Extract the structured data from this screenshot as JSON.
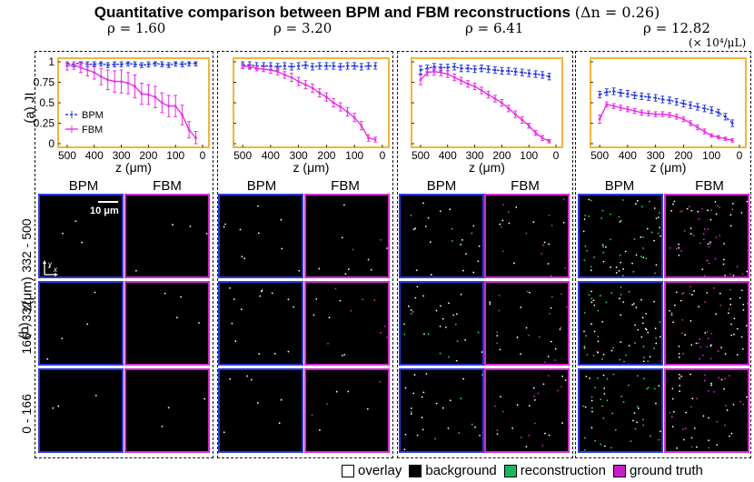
{
  "title": {
    "text": "Quantitative comparison between BPM and FBM reconstructions",
    "suffix": "(Δn = 0.26)"
  },
  "rho_values": [
    "1.60",
    "3.20",
    "6.41",
    "12.82"
  ],
  "rho_symbol": "ρ = ",
  "unit_label": "(× 10⁴/μL)",
  "row_a_label": "(a)  JI",
  "row_b_label": "(b)",
  "z_axis_label": "z(μm)",
  "z_bins": [
    "332 - 500",
    "166 - 332",
    "0 - 166"
  ],
  "column_headers": {
    "bpm": "BPM",
    "fbm": "FBM"
  },
  "scale_bar": {
    "label": "10 μm"
  },
  "orientation": {
    "y": "y",
    "x": "x"
  },
  "legend_plot": {
    "bpm": "BPM",
    "fbm": "FBM"
  },
  "legend_bottom": [
    {
      "label": "overlay",
      "color": "#ffffff"
    },
    {
      "label": "background",
      "color": "#000000"
    },
    {
      "label": "reconstruction",
      "color": "#1bb560"
    },
    {
      "label": "ground truth",
      "color": "#c81ec8"
    }
  ],
  "colors": {
    "bpm": "#2a3adf",
    "fbm": "#e62fe3",
    "frame": "#f2b53b",
    "overlay": "#ffffff",
    "recon": "#22e05a",
    "truth": "#d62ad0"
  },
  "chart_data": [
    {
      "type": "line",
      "title": "ρ = 1.60",
      "xlabel": "z (μm)",
      "ylabel": "JI",
      "xlim": [
        520,
        -10
      ],
      "ylim": [
        0,
        1
      ],
      "xticks": [
        500,
        400,
        300,
        200,
        100,
        0
      ],
      "yticks": [
        0,
        0.25,
        0.5,
        0.75,
        1
      ],
      "ytick_labels": [
        "0",
        "0.25",
        "0.5",
        "0.75",
        "1"
      ],
      "x": [
        500,
        475,
        450,
        425,
        400,
        375,
        350,
        325,
        300,
        275,
        250,
        225,
        200,
        175,
        150,
        125,
        100,
        75,
        50,
        25
      ],
      "series": [
        {
          "name": "BPM",
          "values": [
            0.98,
            0.97,
            0.99,
            0.97,
            0.97,
            0.98,
            0.96,
            0.97,
            0.97,
            0.98,
            0.97,
            0.96,
            0.97,
            0.98,
            0.97,
            0.96,
            0.98,
            0.97,
            0.98,
            0.98
          ],
          "err": [
            0.03,
            0.03,
            0.03,
            0.03,
            0.03,
            0.03,
            0.03,
            0.03,
            0.03,
            0.03,
            0.03,
            0.03,
            0.03,
            0.03,
            0.03,
            0.03,
            0.03,
            0.03,
            0.03,
            0.03
          ]
        },
        {
          "name": "FBM",
          "values": [
            0.95,
            0.96,
            0.93,
            0.9,
            0.87,
            0.82,
            0.78,
            0.76,
            0.76,
            0.74,
            0.7,
            0.61,
            0.6,
            0.57,
            0.5,
            0.46,
            0.46,
            0.35,
            0.17,
            0.07
          ],
          "err": [
            0.05,
            0.05,
            0.06,
            0.07,
            0.08,
            0.1,
            0.12,
            0.13,
            0.14,
            0.13,
            0.14,
            0.13,
            0.12,
            0.13,
            0.12,
            0.13,
            0.13,
            0.12,
            0.1,
            0.08
          ]
        }
      ]
    },
    {
      "type": "line",
      "title": "ρ = 3.20",
      "xlabel": "z (μm)",
      "ylabel": "JI",
      "xlim": [
        520,
        -10
      ],
      "ylim": [
        0,
        1
      ],
      "xticks": [
        500,
        400,
        300,
        200,
        100,
        0
      ],
      "yticks": [
        0,
        0.25,
        0.5,
        0.75,
        1
      ],
      "ytick_labels": [
        "",
        "",
        "",
        "",
        ""
      ],
      "x": [
        500,
        475,
        450,
        425,
        400,
        375,
        350,
        325,
        300,
        275,
        250,
        225,
        200,
        175,
        150,
        125,
        100,
        75,
        50,
        25
      ],
      "series": [
        {
          "name": "BPM",
          "values": [
            0.96,
            0.96,
            0.95,
            0.95,
            0.95,
            0.94,
            0.95,
            0.94,
            0.95,
            0.96,
            0.94,
            0.95,
            0.95,
            0.95,
            0.94,
            0.95,
            0.95,
            0.94,
            0.95,
            0.95
          ],
          "err": [
            0.04,
            0.04,
            0.04,
            0.04,
            0.04,
            0.04,
            0.04,
            0.04,
            0.04,
            0.04,
            0.04,
            0.04,
            0.04,
            0.04,
            0.04,
            0.04,
            0.04,
            0.04,
            0.04,
            0.04
          ]
        },
        {
          "name": "FBM",
          "values": [
            0.95,
            0.94,
            0.92,
            0.91,
            0.9,
            0.88,
            0.84,
            0.81,
            0.76,
            0.72,
            0.68,
            0.62,
            0.57,
            0.5,
            0.45,
            0.39,
            0.32,
            0.22,
            0.07,
            0.05
          ],
          "err": [
            0.03,
            0.03,
            0.03,
            0.03,
            0.04,
            0.04,
            0.04,
            0.05,
            0.05,
            0.05,
            0.05,
            0.05,
            0.05,
            0.05,
            0.05,
            0.05,
            0.05,
            0.05,
            0.04,
            0.03
          ]
        }
      ]
    },
    {
      "type": "line",
      "title": "ρ = 6.41",
      "xlabel": "z (μm)",
      "ylabel": "JI",
      "xlim": [
        520,
        -10
      ],
      "ylim": [
        0,
        1
      ],
      "xticks": [
        500,
        400,
        300,
        200,
        100,
        0
      ],
      "yticks": [
        0,
        0.25,
        0.5,
        0.75,
        1
      ],
      "ytick_labels": [
        "",
        "",
        "",
        "",
        ""
      ],
      "x": [
        500,
        475,
        450,
        425,
        400,
        375,
        350,
        325,
        300,
        275,
        250,
        225,
        200,
        175,
        150,
        125,
        100,
        75,
        50,
        25
      ],
      "series": [
        {
          "name": "BPM",
          "values": [
            0.9,
            0.92,
            0.94,
            0.93,
            0.93,
            0.94,
            0.92,
            0.92,
            0.91,
            0.92,
            0.91,
            0.9,
            0.89,
            0.89,
            0.88,
            0.87,
            0.86,
            0.85,
            0.84,
            0.82
          ],
          "err": [
            0.05,
            0.04,
            0.04,
            0.04,
            0.04,
            0.04,
            0.04,
            0.04,
            0.04,
            0.04,
            0.04,
            0.04,
            0.04,
            0.04,
            0.04,
            0.04,
            0.04,
            0.04,
            0.04,
            0.04
          ]
        },
        {
          "name": "FBM",
          "values": [
            0.78,
            0.87,
            0.88,
            0.87,
            0.85,
            0.81,
            0.77,
            0.73,
            0.7,
            0.65,
            0.6,
            0.55,
            0.5,
            0.43,
            0.36,
            0.29,
            0.22,
            0.13,
            0.07,
            0.03
          ],
          "err": [
            0.06,
            0.04,
            0.04,
            0.04,
            0.04,
            0.04,
            0.04,
            0.04,
            0.04,
            0.04,
            0.04,
            0.04,
            0.04,
            0.04,
            0.04,
            0.04,
            0.03,
            0.03,
            0.03,
            0.02
          ]
        }
      ]
    },
    {
      "type": "line",
      "title": "ρ = 12.82",
      "xlabel": "z (μm)",
      "ylabel": "JI",
      "xlim": [
        520,
        -10
      ],
      "ylim": [
        0,
        1
      ],
      "xticks": [
        500,
        400,
        300,
        200,
        100,
        0
      ],
      "yticks": [
        0,
        0.25,
        0.5,
        0.75,
        1
      ],
      "ytick_labels": [
        "",
        "",
        "",
        "",
        ""
      ],
      "x": [
        500,
        475,
        450,
        425,
        400,
        375,
        350,
        325,
        300,
        275,
        250,
        225,
        200,
        175,
        150,
        125,
        100,
        75,
        50,
        25
      ],
      "series": [
        {
          "name": "BPM",
          "values": [
            0.6,
            0.63,
            0.64,
            0.62,
            0.61,
            0.59,
            0.58,
            0.57,
            0.56,
            0.54,
            0.53,
            0.51,
            0.49,
            0.47,
            0.45,
            0.43,
            0.41,
            0.38,
            0.33,
            0.25
          ],
          "err": [
            0.04,
            0.04,
            0.04,
            0.04,
            0.04,
            0.04,
            0.04,
            0.04,
            0.04,
            0.04,
            0.04,
            0.04,
            0.04,
            0.04,
            0.04,
            0.04,
            0.04,
            0.04,
            0.04,
            0.04
          ]
        },
        {
          "name": "FBM",
          "values": [
            0.3,
            0.48,
            0.46,
            0.44,
            0.42,
            0.4,
            0.38,
            0.37,
            0.36,
            0.36,
            0.35,
            0.33,
            0.3,
            0.25,
            0.2,
            0.15,
            0.1,
            0.08,
            0.06,
            0.04
          ],
          "err": [
            0.05,
            0.03,
            0.03,
            0.03,
            0.03,
            0.03,
            0.03,
            0.03,
            0.03,
            0.03,
            0.03,
            0.03,
            0.03,
            0.03,
            0.03,
            0.03,
            0.02,
            0.02,
            0.02,
            0.02
          ]
        }
      ]
    }
  ]
}
